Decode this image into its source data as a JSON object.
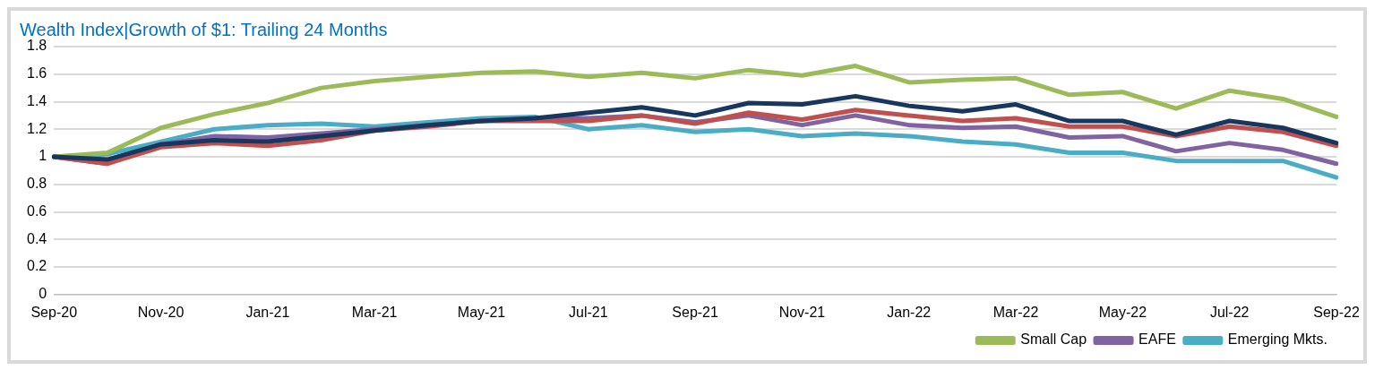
{
  "chart_data": {
    "type": "line",
    "title": "Wealth Index|Growth of $1: Trailing 24 Months",
    "categories": [
      "Sep-20",
      null,
      "Nov-20",
      null,
      "Jan-21",
      null,
      "Mar-21",
      null,
      "May-21",
      null,
      "Jul-21",
      null,
      "Sep-21",
      null,
      "Nov-21",
      null,
      "Jan-22",
      null,
      "Mar-22",
      null,
      "May-22",
      null,
      "Jul-22",
      null,
      "Sep-22"
    ],
    "series": [
      {
        "color": "#17375e",
        "values": [
          1.0,
          0.98,
          1.09,
          1.12,
          1.11,
          1.15,
          1.19,
          1.23,
          1.26,
          1.28,
          1.32,
          1.36,
          1.3,
          1.39,
          1.38,
          1.44,
          1.37,
          1.33,
          1.38,
          1.26,
          1.26,
          1.16,
          1.26,
          1.21,
          1.1
        ]
      },
      {
        "color": "#c0504d",
        "values": [
          1.0,
          0.95,
          1.07,
          1.1,
          1.08,
          1.12,
          1.19,
          1.22,
          1.26,
          1.26,
          1.26,
          1.3,
          1.24,
          1.32,
          1.27,
          1.34,
          1.3,
          1.26,
          1.28,
          1.22,
          1.22,
          1.15,
          1.22,
          1.18,
          1.08
        ]
      },
      {
        "name": "Small Cap",
        "color": "#9bbb59",
        "values": [
          1.0,
          1.03,
          1.21,
          1.31,
          1.39,
          1.5,
          1.55,
          1.58,
          1.61,
          1.62,
          1.58,
          1.61,
          1.57,
          1.63,
          1.59,
          1.66,
          1.54,
          1.56,
          1.57,
          1.45,
          1.47,
          1.35,
          1.48,
          1.42,
          1.29
        ]
      },
      {
        "name": "EAFE",
        "color": "#8064a2",
        "values": [
          1.0,
          0.95,
          1.09,
          1.15,
          1.14,
          1.17,
          1.2,
          1.23,
          1.26,
          1.28,
          1.28,
          1.3,
          1.25,
          1.3,
          1.23,
          1.3,
          1.23,
          1.21,
          1.22,
          1.14,
          1.15,
          1.04,
          1.1,
          1.05,
          0.95
        ]
      },
      {
        "name": "Emerging Mkts.",
        "color": "#4bacc6",
        "values": [
          1.0,
          1.02,
          1.11,
          1.2,
          1.23,
          1.24,
          1.22,
          1.25,
          1.28,
          1.29,
          1.2,
          1.23,
          1.18,
          1.2,
          1.15,
          1.17,
          1.15,
          1.11,
          1.09,
          1.03,
          1.03,
          0.97,
          0.97,
          0.97,
          0.85
        ]
      }
    ],
    "ylim": [
      0,
      1.8
    ],
    "yticks": [
      0,
      0.2,
      0.4,
      0.6,
      0.8,
      1,
      1.2,
      1.4,
      1.6,
      1.8
    ],
    "grid": "y",
    "legend": "bottom right",
    "marker": "none",
    "line_style": "solid"
  }
}
